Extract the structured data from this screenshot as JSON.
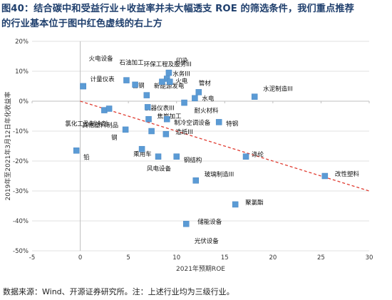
{
  "title_lines": [
    "图40：结合碳中和受益行业+收益率并未大幅透支 ROE 的筛选条件，我们重点推荐",
    "的行业基本位于图中红色虚线的右上方"
  ],
  "source": "数据来源：Wind、开源证券研究所。注：上述行业均为三级行业。",
  "colors": {
    "title": "#1f3f6d",
    "marker": "#5b9bd5",
    "trend": "#e03c31",
    "grid": "#d9d9d9",
    "axis": "#bfbfbf"
  },
  "chart_data": {
    "type": "scatter",
    "xlabel": "2021年预期ROE",
    "ylabel": "2019年至2021年3月12日年化收益率",
    "xlim": [
      -5,
      30
    ],
    "ylim": [
      -50,
      20
    ],
    "x_ticks": [
      "-5",
      "0",
      "5",
      "10",
      "15",
      "20",
      "25",
      "30"
    ],
    "y_ticks": [
      "20%",
      "10%",
      "0%",
      "-10%",
      "-20%",
      "-30%",
      "-40%",
      "-50%"
    ],
    "y_tick_values": [
      20,
      10,
      0,
      -10,
      -20,
      -30,
      -40,
      -50
    ],
    "x_tick_values": [
      -5,
      0,
      5,
      10,
      15,
      20,
      25,
      30
    ],
    "trend_line": {
      "style": "dashed",
      "from": [
        0,
        0
      ],
      "to": [
        30,
        -30
      ]
    },
    "points": [
      {
        "name": "火电设备",
        "x": 0.3,
        "y": 5.0
      },
      {
        "name": "计量仪表",
        "x": 0.3,
        "y": 5.0
      },
      {
        "name": "石油加工",
        "x": 4.8,
        "y": 7.0
      },
      {
        "name": "环保工程及服务III",
        "x": 5.7,
        "y": 5.5
      },
      {
        "name": "印染",
        "x": 9.2,
        "y": 9.5
      },
      {
        "name": "水务III",
        "x": 9.0,
        "y": 7.5
      },
      {
        "name": "普钢",
        "x": 8.5,
        "y": 6.5
      },
      {
        "name": "火电",
        "x": 9.3,
        "y": 6.5
      },
      {
        "name": "新能源发电",
        "x": 6.9,
        "y": 2.0
      },
      {
        "name": "管材",
        "x": 12.3,
        "y": 3.0
      },
      {
        "name": "水电",
        "x": 11.9,
        "y": 1.0
      },
      {
        "name": "水泥制造III",
        "x": 18.1,
        "y": 1.5
      },
      {
        "name": "仪器仪表III",
        "x": 7.0,
        "y": -2.0
      },
      {
        "name": "耐火材料",
        "x": 10.8,
        "y": -0.5
      },
      {
        "name": "氯化工及制冷剂",
        "x": 2.5,
        "y": -3.0
      },
      {
        "name": "其他塑料制品",
        "x": 3.0,
        "y": -2.5
      },
      {
        "name": "焦炭加工",
        "x": 7.1,
        "y": -6.0
      },
      {
        "name": "制冷空调设备",
        "x": 9.0,
        "y": -6.0
      },
      {
        "name": "钢",
        "x": 4.7,
        "y": -9.5
      },
      {
        "name": "特钢",
        "x": 14.4,
        "y": -7.0
      },
      {
        "name": "造纸III",
        "x": 7.4,
        "y": -10.0
      },
      {
        "name": "铅",
        "x": -0.4,
        "y": -16.5
      },
      {
        "name": "乘用车",
        "x": 8.9,
        "y": -11.0
      },
      {
        "name": "风电设备",
        "x": 6.4,
        "y": -16.0
      },
      {
        "name": "钢结构",
        "x": 8.1,
        "y": -18.5
      },
      {
        "name": "涤纶",
        "x": 10.0,
        "y": -18.5
      },
      {
        "name": "玻璃制造III",
        "x": 17.2,
        "y": -18.5
      },
      {
        "name": "改性塑料",
        "x": 25.4,
        "y": -25.0
      },
      {
        "name": "聚氯酯",
        "x": 12.0,
        "y": -26.5
      },
      {
        "name": "储能设备",
        "x": 16.1,
        "y": -34.5
      },
      {
        "name": "光伏设备",
        "x": 11.0,
        "y": -41.0
      }
    ],
    "label_points": [
      {
        "text": "火电设备",
        "x": 0.3,
        "y": 5.0
      },
      {
        "text": "计量仪表",
        "x": 0.3,
        "y": 5.0
      },
      {
        "text": "石油加工",
        "x": 4.8,
        "y": 7.0
      },
      {
        "text": "环保工程及服务III",
        "x": 5.7,
        "y": 5.5
      },
      {
        "text": "印染",
        "x": 9.2,
        "y": 9.5
      },
      {
        "text": "水务III",
        "x": 9.0,
        "y": 7.5
      },
      {
        "text": "普钢",
        "x": 5.7,
        "y": 5.5
      },
      {
        "text": "火电",
        "x": 9.3,
        "y": 6.5
      },
      {
        "text": "新能源发电",
        "x": 6.9,
        "y": 2.0
      },
      {
        "text": "管材",
        "x": 12.3,
        "y": 3.0
      },
      {
        "text": "水电",
        "x": 11.9,
        "y": 1.0
      },
      {
        "text": "水泥制造III",
        "x": 18.1,
        "y": 1.5
      },
      {
        "text": "仪器仪表III",
        "x": 7.0,
        "y": -2.0
      },
      {
        "text": "耐火材料",
        "x": 10.8,
        "y": -0.5
      },
      {
        "text": "氯化工及制冷剂",
        "x": 2.5,
        "y": -3.0
      },
      {
        "text": "其他塑料制品",
        "x": 3.0,
        "y": -2.5
      },
      {
        "text": "焦炭加工",
        "x": 7.1,
        "y": -6.0
      },
      {
        "text": "制冷空调设备",
        "x": 9.0,
        "y": -6.0
      },
      {
        "text": "钢",
        "x": 4.7,
        "y": -9.5
      },
      {
        "text": "特钢",
        "x": 14.4,
        "y": -7.0
      },
      {
        "text": "造纸III",
        "x": 9.0,
        "y": -11.0
      },
      {
        "text": "铅",
        "x": -0.4,
        "y": -16.5
      },
      {
        "text": "乘用车",
        "x": 6.4,
        "y": -16.0
      },
      {
        "text": "风电设备",
        "x": 8.1,
        "y": -18.5
      },
      {
        "text": "钢结构",
        "x": 10.0,
        "y": -18.5
      },
      {
        "text": "涤纶",
        "x": 17.2,
        "y": -18.5
      },
      {
        "text": "玻璃制造III",
        "x": 12.0,
        "y": -26.5
      },
      {
        "text": "改性塑料",
        "x": 25.4,
        "y": -25.0
      },
      {
        "text": "聚氯酯",
        "x": 16.1,
        "y": -34.5
      },
      {
        "text": "储能设备",
        "x": 11.0,
        "y": -41.0
      },
      {
        "text": "光伏设备",
        "x": 12.0,
        "y": -44.5
      }
    ]
  }
}
